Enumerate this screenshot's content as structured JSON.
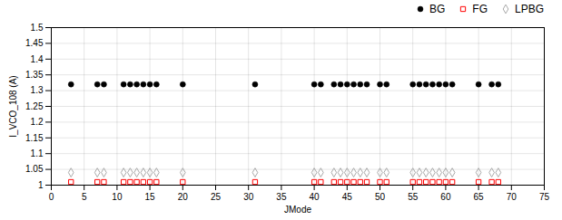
{
  "chart_data": {
    "type": "scatter",
    "xlabel": "JMode",
    "ylabel": "I_VCO_108 (A)",
    "x": [
      3,
      7,
      8,
      11,
      12,
      13,
      14,
      15,
      16,
      20,
      31,
      40,
      41,
      43,
      44,
      45,
      46,
      47,
      48,
      50,
      51,
      55,
      56,
      57,
      58,
      59,
      60,
      61,
      65,
      67,
      68
    ],
    "series": [
      {
        "name": "BG",
        "color": "#000000",
        "marker": "circle",
        "values": [
          1.32,
          1.32,
          1.32,
          1.32,
          1.32,
          1.32,
          1.32,
          1.32,
          1.32,
          1.32,
          1.32,
          1.32,
          1.32,
          1.32,
          1.32,
          1.32,
          1.32,
          1.32,
          1.32,
          1.32,
          1.32,
          1.32,
          1.32,
          1.32,
          1.32,
          1.32,
          1.32,
          1.32,
          1.32,
          1.32,
          1.32
        ]
      },
      {
        "name": "FG",
        "color": "#ff0000",
        "marker": "square",
        "values": [
          1.01,
          1.01,
          1.01,
          1.01,
          1.01,
          1.01,
          1.01,
          1.01,
          1.01,
          1.01,
          1.01,
          1.01,
          1.01,
          1.01,
          1.01,
          1.01,
          1.01,
          1.01,
          1.01,
          1.01,
          1.01,
          1.01,
          1.01,
          1.01,
          1.01,
          1.01,
          1.01,
          1.01,
          1.01,
          1.01,
          1.01
        ]
      },
      {
        "name": "LPBG",
        "color": "#aaaaaa",
        "marker": "diamond",
        "values": [
          1.04,
          1.04,
          1.04,
          1.04,
          1.04,
          1.04,
          1.04,
          1.04,
          1.04,
          1.04,
          1.04,
          1.04,
          1.04,
          1.04,
          1.04,
          1.04,
          1.04,
          1.04,
          1.04,
          1.04,
          1.04,
          1.04,
          1.04,
          1.04,
          1.04,
          1.04,
          1.04,
          1.04,
          1.04,
          1.04,
          1.04
        ]
      }
    ],
    "xlim": [
      0,
      75
    ],
    "ylim": [
      1,
      1.5
    ],
    "xticks": [
      0,
      5,
      10,
      15,
      20,
      25,
      30,
      35,
      40,
      45,
      50,
      55,
      60,
      65,
      70,
      75
    ],
    "yticks": [
      1,
      1.05,
      1.1,
      1.15,
      1.2,
      1.25,
      1.3,
      1.35,
      1.4,
      1.45,
      1.5
    ],
    "grid": true,
    "legend": "upper right"
  }
}
